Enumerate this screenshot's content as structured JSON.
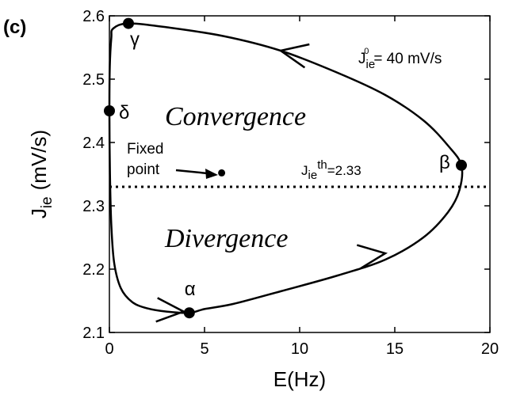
{
  "panel_label": "(c)",
  "chart_data": {
    "type": "line",
    "xlabel": "E(Hz)",
    "ylabel_main": "J",
    "ylabel_sub": "ie",
    "ylabel_unit": "(mV/s)",
    "xlim": [
      0,
      20
    ],
    "ylim": [
      2.1,
      2.6
    ],
    "xticks": [
      0,
      5,
      10,
      15,
      20
    ],
    "xtick_labels": [
      "0",
      "5",
      "10",
      "15",
      "20"
    ],
    "yticks": [
      2.1,
      2.2,
      2.3,
      2.4,
      2.5,
      2.6
    ],
    "ytick_labels": [
      "2.1",
      "2.2",
      "2.3",
      "2.4",
      "2.5",
      "2.6"
    ],
    "grid": false,
    "series": [
      {
        "values": [
          [
            0.2,
            2.58
          ],
          [
            1.0,
            2.588
          ],
          [
            3.0,
            2.582
          ],
          [
            6.0,
            2.568
          ],
          [
            9.0,
            2.545
          ],
          [
            12.0,
            2.51
          ],
          [
            14.5,
            2.475
          ],
          [
            16.5,
            2.435
          ],
          [
            17.8,
            2.395
          ],
          [
            18.5,
            2.364
          ],
          [
            18.4,
            2.325
          ],
          [
            17.8,
            2.29
          ],
          [
            16.5,
            2.25
          ],
          [
            14.5,
            2.215
          ],
          [
            12.0,
            2.19
          ],
          [
            9.0,
            2.165
          ],
          [
            6.5,
            2.145
          ],
          [
            5.0,
            2.137
          ],
          [
            4.2,
            2.131
          ],
          [
            3.0,
            2.133
          ],
          [
            2.0,
            2.138
          ],
          [
            1.2,
            2.148
          ],
          [
            0.6,
            2.17
          ],
          [
            0.25,
            2.21
          ],
          [
            0.1,
            2.27
          ],
          [
            0.03,
            2.35
          ],
          [
            0.0,
            2.45
          ],
          [
            0.02,
            2.52
          ],
          [
            0.1,
            2.565
          ],
          [
            0.2,
            2.58
          ]
        ]
      }
    ],
    "threshold": {
      "y": 2.33,
      "label_main": "J",
      "label_sub": "ie",
      "label_sup": "th",
      "label_value": "=2.33"
    },
    "fixed_point": {
      "x": 5.9,
      "y": 2.352,
      "label_line1": "Fixed",
      "label_line2": "point"
    },
    "points": [
      {
        "name": "gamma",
        "label": "γ",
        "x": 1.0,
        "y": 2.588
      },
      {
        "name": "delta",
        "label": "δ",
        "x": 0.0,
        "y": 2.45
      },
      {
        "name": "beta",
        "label": "β",
        "x": 18.5,
        "y": 2.364
      },
      {
        "name": "alpha",
        "label": "α",
        "x": 4.2,
        "y": 2.131
      }
    ],
    "arrows": [
      {
        "x": 9.0,
        "y": 2.545,
        "dx": -1,
        "dy": 0.006
      },
      {
        "x": 14.5,
        "y": 2.225,
        "dx": 1,
        "dy": 0.004
      },
      {
        "x": 3.9,
        "y": 2.133,
        "dx": 1,
        "dy": -0.002
      }
    ],
    "region_labels": {
      "upper": "Convergence",
      "lower": "Divergence"
    },
    "param_annotation": {
      "main": "J",
      "sub": "ie",
      "sup": "0",
      "value": "= 40 mV/s"
    }
  }
}
